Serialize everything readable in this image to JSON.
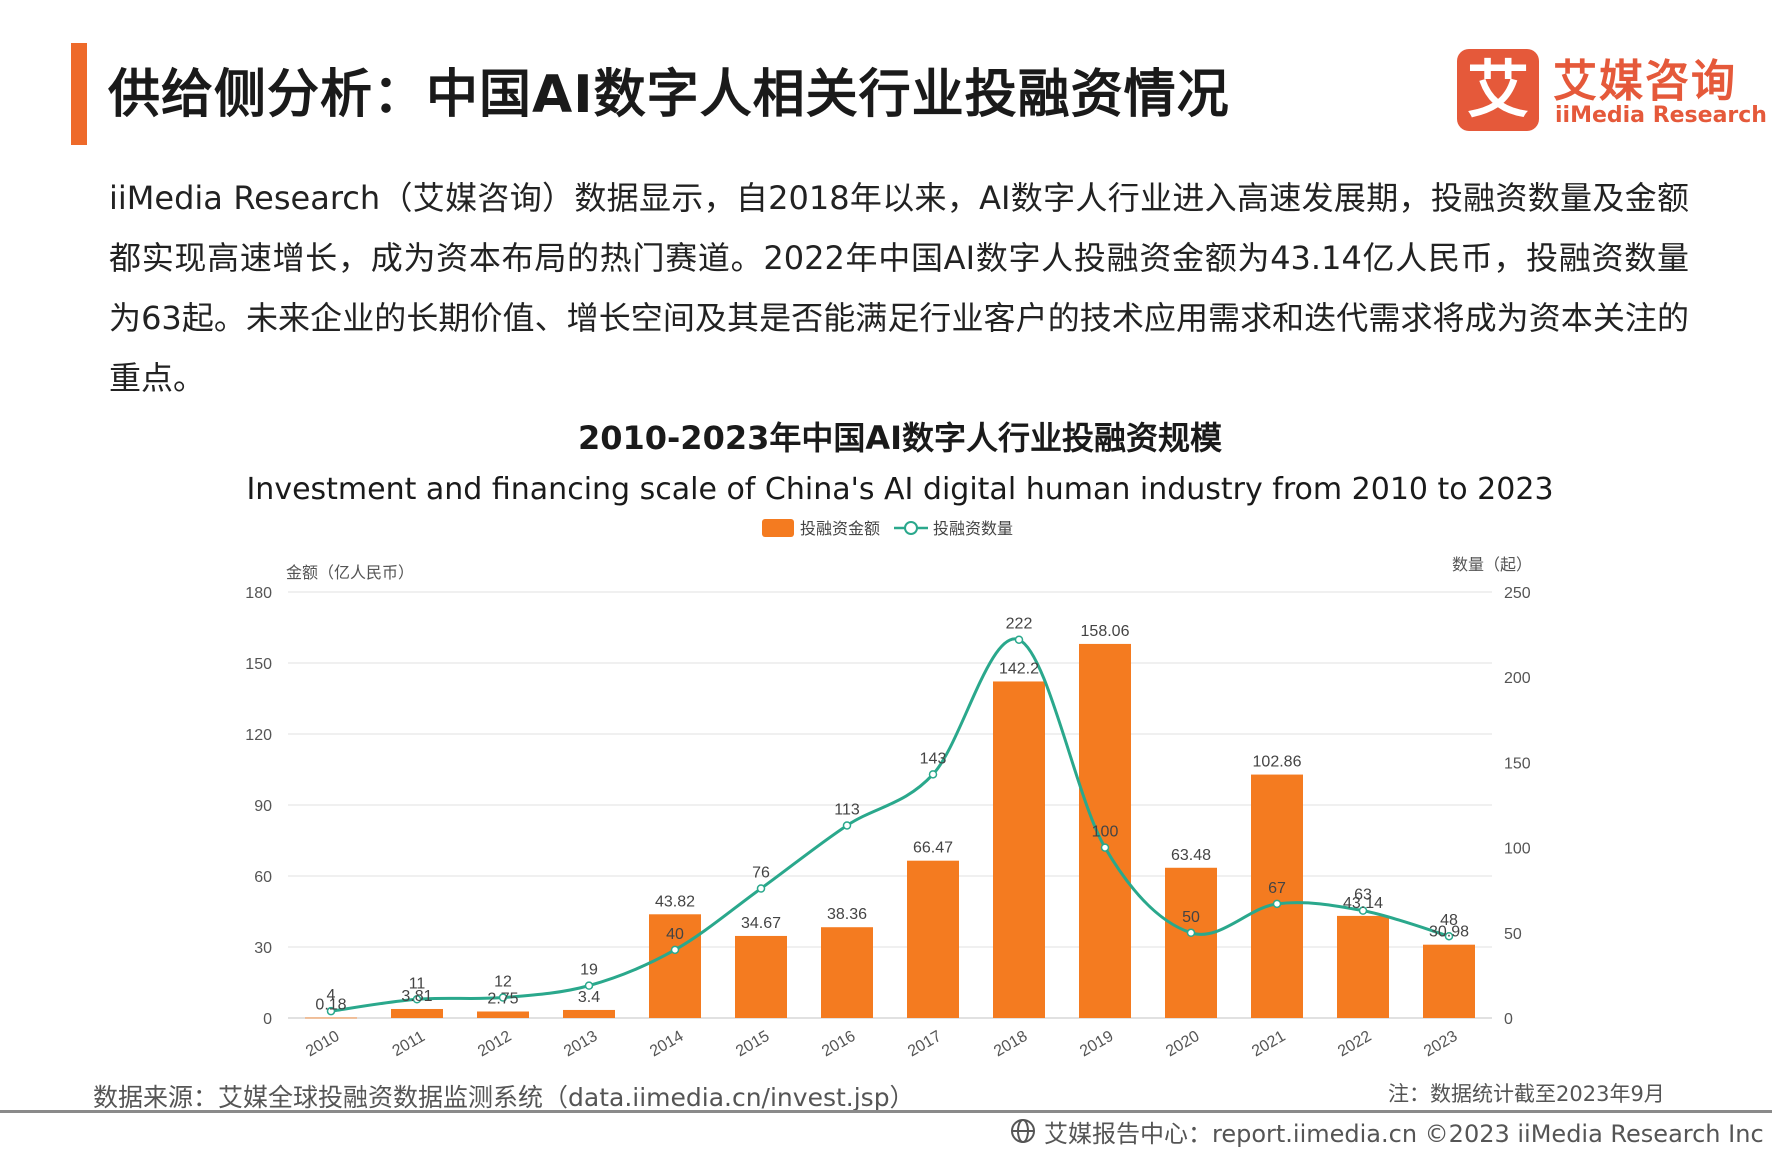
{
  "header": {
    "title": "供给侧分析：中国AI数字人相关行业投融资情况",
    "logo_cn": "艾媒咨询",
    "logo_en": "iiMedia Research",
    "logo_char": "艾"
  },
  "intro": "iiMedia Research（艾媒咨询）数据显示，自2018年以来，AI数字人行业进入高速发展期，投融资数量及金额都实现高速增长，成为资本布局的热门赛道。2022年中国AI数字人投融资金额为43.14亿人民币，投融资数量为63起。未来企业的长期价值、增长空间及其是否能满足行业客户的技术应用需求和迭代需求将成为资本关注的重点。",
  "chart_data": {
    "type": "bar",
    "title": "2010-2023年中国AI数字人行业投融资规模",
    "subtitle": "Investment and financing scale of China's AI digital human industry from 2010 to 2023",
    "categories": [
      "2010",
      "2011",
      "2012",
      "2013",
      "2014",
      "2015",
      "2016",
      "2017",
      "2018",
      "2019",
      "2020",
      "2021",
      "2022",
      "2023"
    ],
    "series": [
      {
        "name": "投融资金额",
        "type": "bar",
        "axis": "left",
        "color": "#f47b20",
        "values": [
          0.18,
          3.81,
          2.75,
          3.4,
          43.82,
          34.67,
          38.36,
          66.47,
          142.2,
          158.06,
          63.48,
          102.86,
          43.14,
          30.98
        ]
      },
      {
        "name": "投融资数量",
        "type": "line",
        "axis": "right",
        "color": "#2aa88c",
        "values": [
          4,
          11,
          12,
          19,
          40,
          76,
          113,
          143,
          222,
          100,
          50,
          67,
          63,
          48
        ]
      }
    ],
    "ylabel": "金额（亿人民币）",
    "y2label": "数量（起）",
    "ylim": [
      0,
      180
    ],
    "yticks": [
      0,
      30,
      60,
      90,
      120,
      150,
      180
    ],
    "y2lim": [
      0,
      250
    ],
    "y2ticks": [
      0,
      50,
      100,
      150,
      200,
      250
    ],
    "grid": true,
    "legend_position": "top-center"
  },
  "footer": {
    "source": "数据来源：艾媒全球投融资数据监测系统（data.iimedia.cn/invest.jsp）",
    "note": "注：数据统计截至2023年9月",
    "site": "艾媒报告中心：report.iimedia.cn ©2023 iiMedia Research Inc"
  }
}
